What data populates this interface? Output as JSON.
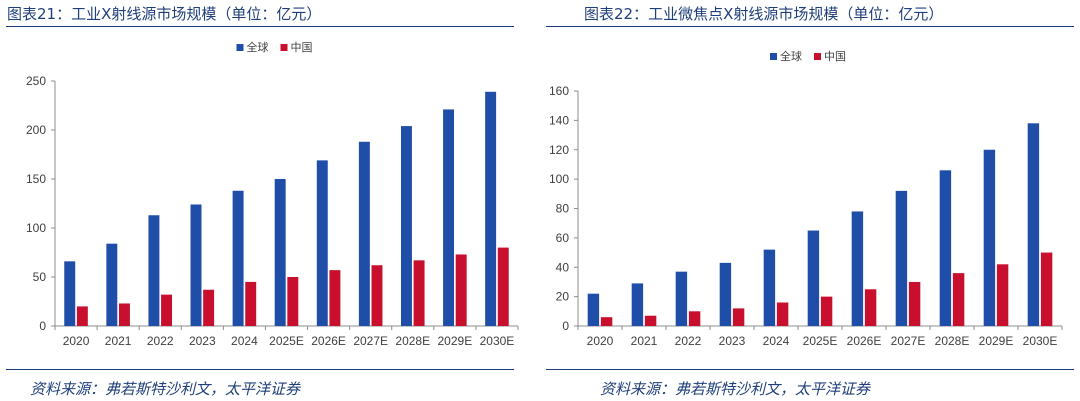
{
  "charts": [
    {
      "title": "图表21：工业X射线源市场规模（单位：亿元）",
      "source": "资料来源：弗若斯特沙利文，太平洋证券"
    },
    {
      "title": "图表22：工业微焦点X射线源市场规模（单位：亿元）",
      "source": "资料来源：弗若斯特沙利文，太平洋证券"
    }
  ],
  "chart_data": [
    {
      "type": "bar",
      "title": "",
      "categories": [
        "2020",
        "2021",
        "2022",
        "2023",
        "2024",
        "2025E",
        "2026E",
        "2027E",
        "2028E",
        "2029E",
        "2030E"
      ],
      "series": [
        {
          "name": "全球",
          "color": "#1f4ea8",
          "values": [
            66,
            84,
            113,
            124,
            138,
            150,
            169,
            188,
            204,
            221,
            239
          ]
        },
        {
          "name": "中国",
          "color": "#c8102e",
          "values": [
            20,
            23,
            32,
            37,
            45,
            50,
            57,
            62,
            67,
            73,
            80
          ]
        }
      ],
      "ylim": [
        0,
        250
      ],
      "yticks": [
        0,
        50,
        100,
        150,
        200,
        250
      ],
      "grid": false,
      "legend": "top-center"
    },
    {
      "type": "bar",
      "title": "",
      "categories": [
        "2020",
        "2021",
        "2022",
        "2023",
        "2024",
        "2025E",
        "2026E",
        "2027E",
        "2028E",
        "2029E",
        "2030E"
      ],
      "series": [
        {
          "name": "全球",
          "color": "#1f4ea8",
          "values": [
            22,
            29,
            37,
            43,
            52,
            65,
            78,
            92,
            106,
            120,
            138
          ]
        },
        {
          "name": "中国",
          "color": "#c8102e",
          "values": [
            6,
            7,
            10,
            12,
            16,
            20,
            25,
            30,
            36,
            42,
            50
          ]
        }
      ],
      "ylim": [
        0,
        160
      ],
      "yticks": [
        0,
        20,
        40,
        60,
        80,
        100,
        120,
        140,
        160
      ],
      "grid": false,
      "legend": "top-center"
    }
  ]
}
